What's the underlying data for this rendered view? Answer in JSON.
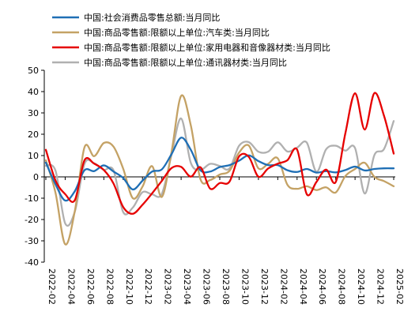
{
  "chart_data": {
    "type": "line",
    "ylim": [
      -40,
      50
    ],
    "yticks": [
      -40,
      -30,
      -20,
      -10,
      0,
      10,
      20,
      30,
      40,
      50
    ],
    "x": [
      "2022-02",
      "2022-03",
      "2022-04",
      "2022-05",
      "2022-06",
      "2022-07",
      "2022-08",
      "2022-09",
      "2022-10",
      "2022-11",
      "2022-12",
      "2023-01",
      "2023-02",
      "2023-03",
      "2023-04",
      "2023-05",
      "2023-06",
      "2023-07",
      "2023-08",
      "2023-09",
      "2023-10",
      "2023-11",
      "2023-12",
      "2024-01",
      "2024-02",
      "2024-03",
      "2024-04",
      "2024-05",
      "2024-06",
      "2024-07",
      "2024-08",
      "2024-09",
      "2024-10",
      "2024-11",
      "2024-12",
      "2025-01",
      "2025-02"
    ],
    "xticklabels": [
      "2022-02",
      "2022-04",
      "2022-06",
      "2022-08",
      "2022-10",
      "2022-12",
      "2023-02",
      "2023-04",
      "2023-06",
      "2023-08",
      "2023-10",
      "2023-12",
      "2024-02",
      "2024-04",
      "2024-06",
      "2024-08",
      "2024-10",
      "2024-12",
      "2025-02"
    ],
    "legend_position": "top",
    "series": [
      {
        "name": "中国:社会消费品零售总额:当月同比",
        "color": "#1f6fb5",
        "values": [
          6.7,
          -3.5,
          -11.1,
          -6.7,
          3.1,
          2.7,
          5.4,
          2.5,
          -0.5,
          -5.9,
          -1.8,
          2.5,
          3.5,
          10.6,
          18.4,
          12.7,
          3.1,
          2.5,
          4.6,
          5.5,
          7.6,
          10.1,
          7.4,
          5.5,
          5.5,
          3.1,
          2.3,
          3.7,
          2.0,
          2.7,
          2.1,
          3.2,
          4.8,
          3.0,
          3.7,
          4.0,
          4.0
        ]
      },
      {
        "name": "中国:商品零售额:限额以上单位:汽车类:当月同比",
        "color": "#c4a265",
        "values": [
          7.8,
          -7.5,
          -31.6,
          -16.0,
          13.9,
          9.7,
          15.9,
          14.2,
          3.9,
          -10.0,
          -4.6,
          5.0,
          -9.4,
          11.5,
          38.0,
          24.2,
          -1.1,
          -1.5,
          1.1,
          2.8,
          11.4,
          14.7,
          4.0,
          6.1,
          8.7,
          -3.7,
          -5.6,
          -4.4,
          -6.2,
          -4.9,
          -7.3,
          0.4,
          3.7,
          6.6,
          0.0,
          -2.0,
          -4.4
        ]
      },
      {
        "name": "中国:商品零售额:限额以上单位:家用电器和音像器材类:当月同比",
        "color": "#e60000",
        "values": [
          12.7,
          -1.7,
          -8.1,
          -10.9,
          7.8,
          6.2,
          3.2,
          -3.1,
          -14.1,
          -17.3,
          -13.1,
          -7.7,
          -1.9,
          4.1,
          4.7,
          0.1,
          4.5,
          -5.5,
          -2.9,
          -2.3,
          9.6,
          9.4,
          0.1,
          3.9,
          6.2,
          7.8,
          12.8,
          -8.1,
          -2.4,
          3.4,
          -2.4,
          20.5,
          39.2,
          22.2,
          39.3,
          28.6,
          10.9
        ]
      },
      {
        "name": "中国:商品零售额:限额以上单位:通讯器材类:当月同比",
        "color": "#b0b0b0",
        "values": [
          5.2,
          2.9,
          -21.8,
          -16.3,
          6.1,
          6.4,
          3.3,
          3.1,
          -16.5,
          -14.4,
          -7.2,
          -8.2,
          -8.0,
          10.2,
          27.4,
          6.6,
          3.3,
          6.1,
          5.1,
          3.9,
          14.6,
          16.3,
          11.8,
          11.8,
          16.2,
          11.9,
          13.7,
          16.1,
          2.4,
          12.9,
          14.6,
          12.3,
          13.5,
          -7.8,
          10.2,
          13.1,
          26.2
        ]
      }
    ]
  }
}
